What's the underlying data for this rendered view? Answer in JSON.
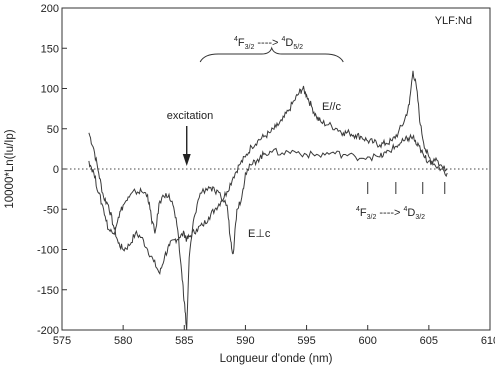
{
  "chart_data": {
    "type": "line",
    "title": "",
    "sample_label": "YLF:Nd",
    "xlabel": "Longueur d'onde (nm)",
    "ylabel": "10000*Ln(Iu/Ip)",
    "xlim": [
      575,
      610
    ],
    "ylim": [
      -200,
      200
    ],
    "xticks": [
      575,
      580,
      585,
      590,
      595,
      600,
      605,
      610
    ],
    "yticks": [
      -200,
      -150,
      -100,
      -50,
      0,
      50,
      100,
      150,
      200
    ],
    "baseline": 0,
    "series": [
      {
        "name": "E//c",
        "x": [
          577.2,
          577.6,
          578.0,
          578.4,
          578.8,
          579.2,
          579.6,
          580.0,
          580.5,
          581.0,
          581.5,
          582.0,
          582.5,
          583.0,
          583.4,
          583.8,
          584.2,
          584.6,
          585.0,
          585.2,
          585.5,
          586.0,
          586.5,
          587.0,
          587.5,
          588.0,
          588.5,
          589.0,
          589.5,
          590.0,
          590.5,
          591.0,
          591.5,
          592.0,
          592.5,
          593.0,
          593.5,
          594.0,
          594.4,
          594.7,
          595.0,
          595.4,
          595.8,
          596.2,
          596.8,
          597.5,
          598.0,
          598.5,
          599.0,
          599.5,
          600.0,
          600.5,
          601.0,
          601.5,
          602.0,
          602.5,
          603.0,
          603.4,
          603.7,
          604.0,
          604.3,
          604.7,
          605.0,
          605.5,
          606.0,
          606.5
        ],
        "y": [
          45,
          25,
          -5,
          -35,
          -45,
          -70,
          -92,
          -100,
          -95,
          -80,
          -85,
          -100,
          -115,
          -130,
          -108,
          -95,
          -88,
          -85,
          -80,
          -88,
          -83,
          -75,
          -70,
          -60,
          -50,
          -40,
          -28,
          -10,
          5,
          15,
          28,
          35,
          40,
          45,
          52,
          60,
          72,
          85,
          95,
          100,
          92,
          78,
          65,
          58,
          55,
          50,
          45,
          45,
          42,
          40,
          35,
          33,
          30,
          32,
          35,
          45,
          60,
          80,
          122,
          100,
          55,
          25,
          15,
          5,
          0,
          -5
        ]
      },
      {
        "name": "E⊥c",
        "x": [
          577.2,
          577.6,
          578.0,
          578.4,
          578.8,
          579.2,
          579.6,
          580.0,
          580.5,
          581.0,
          581.5,
          582.0,
          582.3,
          582.6,
          583.0,
          583.5,
          584.0,
          584.4,
          584.8,
          585.0,
          585.2,
          585.4,
          585.8,
          586.3,
          587.0,
          587.5,
          588.0,
          588.5,
          588.8,
          589.0,
          589.3,
          589.7,
          590.0,
          590.5,
          591.0,
          591.5,
          592.0,
          593.0,
          594.0,
          595.0,
          596.0,
          597.0,
          598.0,
          599.0,
          600.0,
          601.0,
          601.5,
          602.0,
          602.5,
          603.0,
          603.3,
          603.7,
          604.0,
          604.3,
          604.6,
          605.0,
          605.5,
          606.0,
          606.5
        ],
        "y": [
          10,
          -5,
          -30,
          -50,
          -75,
          -80,
          -60,
          -45,
          -35,
          -28,
          -28,
          -32,
          -60,
          -80,
          -40,
          -30,
          -40,
          -70,
          -130,
          -165,
          -200,
          -110,
          -60,
          -30,
          -22,
          -28,
          -35,
          -45,
          -90,
          -105,
          -50,
          -35,
          -5,
          5,
          12,
          18,
          22,
          20,
          22,
          18,
          17,
          20,
          18,
          15,
          15,
          15,
          20,
          25,
          30,
          35,
          38,
          40,
          30,
          25,
          15,
          10,
          10,
          5,
          0
        ]
      }
    ],
    "annotations": {
      "excitation": "excitation",
      "series1_label": "E//c",
      "series2_label": "E⊥c",
      "trans_upper_from": "4F3/2",
      "trans_upper_to": "4D5/2",
      "trans_lower_from": "4F3/2",
      "trans_lower_to": "4D3/2",
      "upper_sup1": "4",
      "upper_base1": "F",
      "upper_sub1": "3/2",
      "upper_arrow": "---->",
      "upper_sup2": "4",
      "upper_base2": "D",
      "upper_sub2": "5/2",
      "lower_sup1": "4",
      "lower_base1": "F",
      "lower_sub1": "3/2",
      "lower_arrow": "---->",
      "lower_sup2": "4",
      "lower_base2": "D",
      "lower_sub2": "3/2"
    },
    "transition_ticks_x": [
      600.0,
      602.3,
      604.5,
      606.3
    ],
    "excitation_x": 585.2,
    "brace_x_range": [
      586.3,
      598.0
    ],
    "grid": false,
    "legend": "none"
  }
}
